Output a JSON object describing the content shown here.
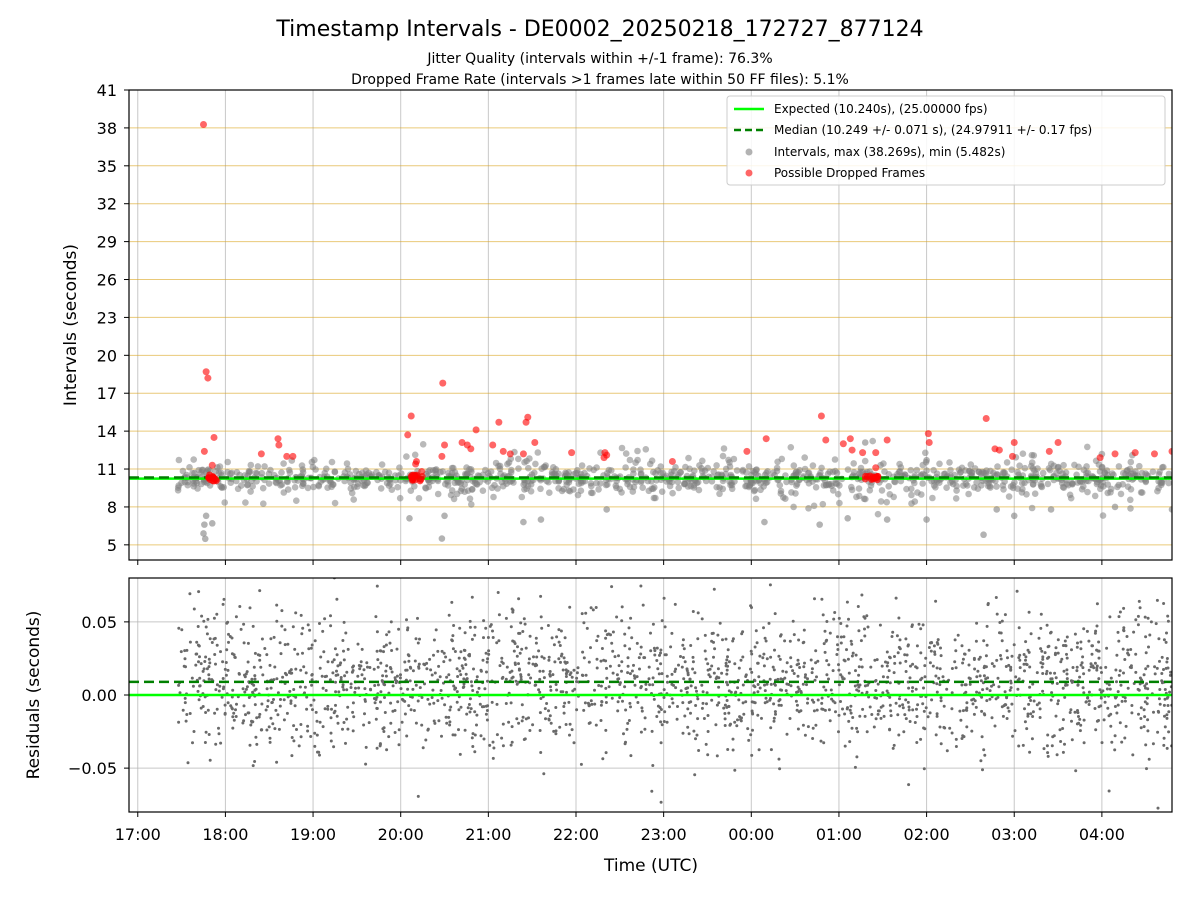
{
  "chart_data": {
    "type": "scatter",
    "title": "Timestamp Intervals - DE0002_20250218_172727_877124",
    "subtitle_lines": [
      "Jitter Quality (intervals within +/-1 frame): 76.3%",
      "Dropped Frame Rate (intervals >1 frames late within 50 FF files): 5.1%"
    ],
    "xlabel": "Time (UTC)",
    "x_tick_labels": [
      "17:00",
      "18:00",
      "19:00",
      "20:00",
      "21:00",
      "22:00",
      "23:00",
      "00:00",
      "01:00",
      "02:00",
      "03:00",
      "04:00"
    ],
    "xlim_hours": [
      16.9,
      28.8
    ],
    "grid": true,
    "legend_position": "upper-right",
    "panels": [
      {
        "name": "intervals",
        "ylabel": "Intervals (seconds)",
        "ylim": [
          3.8,
          41
        ],
        "yticks": [
          5,
          8,
          11,
          14,
          17,
          20,
          23,
          26,
          29,
          32,
          35,
          38,
          41
        ],
        "hlines_expected": 10.24,
        "hlines_median": 10.249,
        "legend": [
          {
            "label": "Expected (10.240s), (25.00000 fps)",
            "style": "solid-line",
            "color": "#00ff00"
          },
          {
            "label": "Median (10.249 +/- 0.071 s), (24.97911 +/- 0.17 fps)",
            "style": "dashed-line",
            "color": "#008000"
          },
          {
            "label": "Intervals, max (38.269s), min (5.482s)",
            "style": "marker",
            "color": "#808080"
          },
          {
            "label": "Possible Dropped Frames",
            "style": "marker",
            "color": "#ff0000"
          }
        ],
        "dropped_frames": [
          {
            "t": 17.75,
            "v": 38.27
          },
          {
            "t": 17.78,
            "v": 18.7
          },
          {
            "t": 17.8,
            "v": 18.2
          },
          {
            "t": 17.76,
            "v": 12.4
          },
          {
            "t": 17.87,
            "v": 13.5
          },
          {
            "t": 17.85,
            "v": 11.3
          },
          {
            "t": 18.41,
            "v": 12.2
          },
          {
            "t": 18.6,
            "v": 13.4
          },
          {
            "t": 18.61,
            "v": 12.9
          },
          {
            "t": 18.7,
            "v": 12.0
          },
          {
            "t": 18.77,
            "v": 12.0
          },
          {
            "t": 20.08,
            "v": 13.7
          },
          {
            "t": 20.12,
            "v": 15.2
          },
          {
            "t": 20.17,
            "v": 11.4
          },
          {
            "t": 20.18,
            "v": 11.6
          },
          {
            "t": 20.24,
            "v": 10.8
          },
          {
            "t": 20.47,
            "v": 12.0
          },
          {
            "t": 20.48,
            "v": 17.8
          },
          {
            "t": 20.5,
            "v": 12.9
          },
          {
            "t": 20.7,
            "v": 13.1
          },
          {
            "t": 20.76,
            "v": 12.9
          },
          {
            "t": 20.8,
            "v": 12.6
          },
          {
            "t": 20.86,
            "v": 14.1
          },
          {
            "t": 21.05,
            "v": 12.9
          },
          {
            "t": 21.12,
            "v": 14.7
          },
          {
            "t": 21.17,
            "v": 12.4
          },
          {
            "t": 21.25,
            "v": 12.2
          },
          {
            "t": 21.4,
            "v": 12.2
          },
          {
            "t": 21.43,
            "v": 14.7
          },
          {
            "t": 21.45,
            "v": 15.1
          },
          {
            "t": 21.53,
            "v": 13.1
          },
          {
            "t": 21.95,
            "v": 12.3
          },
          {
            "t": 22.32,
            "v": 11.9
          },
          {
            "t": 22.33,
            "v": 12.3
          },
          {
            "t": 22.35,
            "v": 12.1
          },
          {
            "t": 23.1,
            "v": 11.6
          },
          {
            "t": 23.95,
            "v": 12.4
          },
          {
            "t": 24.17,
            "v": 13.4
          },
          {
            "t": 24.8,
            "v": 15.2
          },
          {
            "t": 24.85,
            "v": 13.3
          },
          {
            "t": 25.05,
            "v": 13.0
          },
          {
            "t": 25.13,
            "v": 13.4
          },
          {
            "t": 25.15,
            "v": 12.5
          },
          {
            "t": 25.27,
            "v": 12.3
          },
          {
            "t": 25.42,
            "v": 12.3
          },
          {
            "t": 25.42,
            "v": 11.1
          },
          {
            "t": 25.55,
            "v": 13.3
          },
          {
            "t": 26.02,
            "v": 13.8
          },
          {
            "t": 26.03,
            "v": 13.1
          },
          {
            "t": 26.68,
            "v": 15.0
          },
          {
            "t": 26.78,
            "v": 12.6
          },
          {
            "t": 26.83,
            "v": 12.5
          },
          {
            "t": 26.98,
            "v": 12.0
          },
          {
            "t": 27.0,
            "v": 13.1
          },
          {
            "t": 27.4,
            "v": 12.4
          },
          {
            "t": 27.5,
            "v": 13.1
          },
          {
            "t": 27.98,
            "v": 11.9
          },
          {
            "t": 28.15,
            "v": 12.2
          },
          {
            "t": 28.38,
            "v": 12.3
          },
          {
            "t": 28.6,
            "v": 12.2
          },
          {
            "t": 28.8,
            "v": 12.4
          }
        ],
        "dropped_clusters": [
          {
            "t_start": 17.8,
            "t_end": 17.9,
            "v": 10.3
          },
          {
            "t_start": 20.12,
            "t_end": 20.25,
            "v": 10.3
          },
          {
            "t_start": 25.3,
            "t_end": 25.48,
            "v": 10.3
          }
        ],
        "interval_outliers": [
          {
            "t": 17.75,
            "v": 5.9
          },
          {
            "t": 17.77,
            "v": 5.48
          },
          {
            "t": 17.76,
            "v": 6.6
          },
          {
            "t": 17.78,
            "v": 7.3
          },
          {
            "t": 17.85,
            "v": 6.7
          },
          {
            "t": 20.47,
            "v": 5.5
          },
          {
            "t": 20.5,
            "v": 7.3
          },
          {
            "t": 20.1,
            "v": 7.1
          },
          {
            "t": 21.4,
            "v": 6.8
          },
          {
            "t": 21.6,
            "v": 7.0
          },
          {
            "t": 22.35,
            "v": 7.8
          },
          {
            "t": 24.15,
            "v": 6.8
          },
          {
            "t": 24.78,
            "v": 6.6
          },
          {
            "t": 25.1,
            "v": 7.1
          },
          {
            "t": 26.0,
            "v": 7.0
          },
          {
            "t": 26.65,
            "v": 5.8
          },
          {
            "t": 26.8,
            "v": 7.8
          },
          {
            "t": 27.0,
            "v": 7.3
          },
          {
            "t": 27.42,
            "v": 7.8
          },
          {
            "t": 28.15,
            "v": 8.0
          },
          {
            "t": 28.8,
            "v": 7.8
          },
          {
            "t": 25.3,
            "v": 13.1
          },
          {
            "t": 26.0,
            "v": 11.7
          },
          {
            "t": 25.55,
            "v": 7.0
          }
        ],
        "intervals_typical": {
          "t_start": 17.45,
          "t_end": 28.8,
          "center": 10.24,
          "spread": 0.9,
          "wide_fraction": 0.3,
          "wide_spread": 1.8
        }
      },
      {
        "name": "residuals",
        "ylabel": "Residuals (seconds)",
        "ylim": [
          -0.08,
          0.08
        ],
        "ytick_values": [
          -0.05,
          0.0,
          0.05
        ],
        "ytick_labels": [
          "−0.05",
          "0.00",
          "0.05"
        ],
        "hline_zero": 0.0,
        "hline_median_offset": 0.009,
        "residuals_summary": {
          "t_start": 17.45,
          "t_end": 28.8,
          "center": 0.008,
          "spread": 0.025,
          "count": 2200
        }
      }
    ]
  }
}
